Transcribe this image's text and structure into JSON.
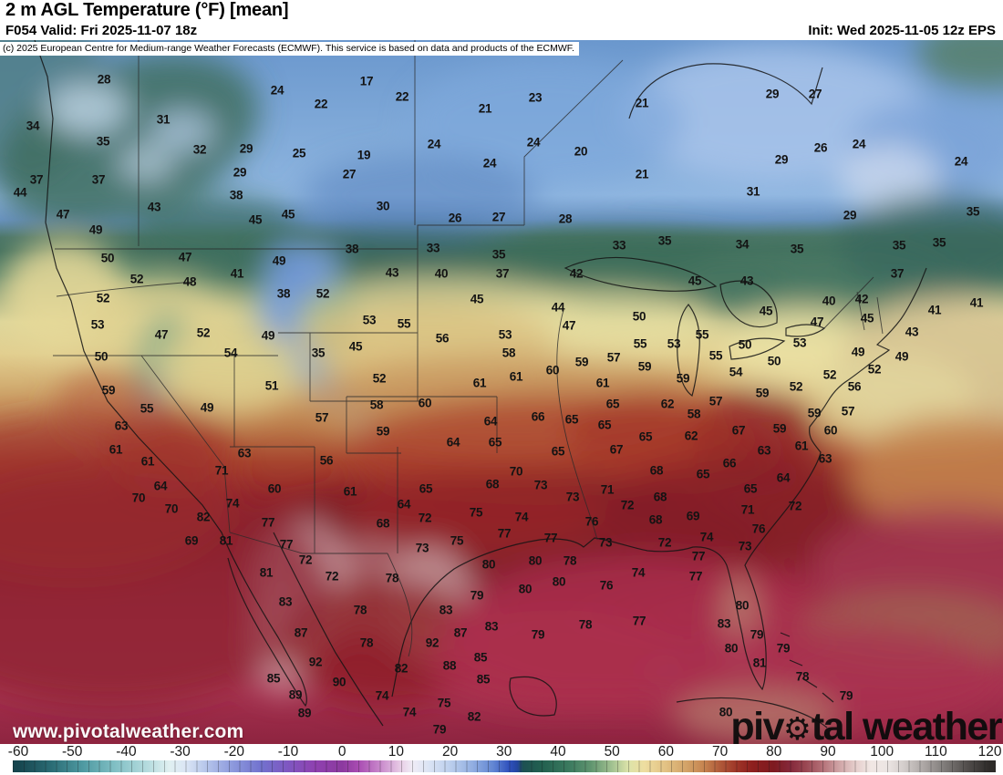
{
  "header": {
    "title": "2 m AGL Temperature (°F) [mean]",
    "forecast_line": "F054 Valid: Fri 2025-11-07 18z",
    "init_line": "Init: Wed 2025-11-05 12z EPS",
    "copyright": "(c) 2025 European Centre for Medium-range Weather Forecasts (ECMWF). This service is based on data and products of the ECMWF."
  },
  "watermarks": {
    "url": "www.pivotalweather.com",
    "logo": {
      "pre": "piv",
      "gear": "⚙",
      "post": "tal weather"
    }
  },
  "colorbar": {
    "unit": "°F",
    "range": [
      -60,
      120
    ],
    "tick_labels": [
      "-60",
      "-50",
      "-40",
      "-30",
      "-20",
      "-10",
      "0",
      "10",
      "20",
      "30",
      "40",
      "50",
      "60",
      "70",
      "80",
      "90",
      "100",
      "110",
      "120"
    ],
    "stops": [
      [
        -60,
        "#16454e"
      ],
      [
        -54,
        "#2a6b74"
      ],
      [
        -48,
        "#4f9aa2"
      ],
      [
        -42,
        "#82c0c5"
      ],
      [
        -36,
        "#b6dcdf"
      ],
      [
        -32,
        "#e0f0f1"
      ],
      [
        -29,
        "#dbe6f5"
      ],
      [
        -25,
        "#b4c4ea"
      ],
      [
        -20,
        "#8b97dc"
      ],
      [
        -15,
        "#7272ce"
      ],
      [
        -10,
        "#7f57c1"
      ],
      [
        -5,
        "#8f41b0"
      ],
      [
        0,
        "#8c3a9f"
      ],
      [
        3,
        "#a94cb2"
      ],
      [
        7,
        "#c887cb"
      ],
      [
        11,
        "#e9cfe7"
      ],
      [
        13,
        "#f0ecf6"
      ],
      [
        16,
        "#dbe4f4"
      ],
      [
        20,
        "#bccfed"
      ],
      [
        24,
        "#94b0e2"
      ],
      [
        28,
        "#6286d3"
      ],
      [
        31,
        "#2f50bd"
      ],
      [
        32.5,
        "#24469f"
      ],
      [
        33.5,
        "#1d5052"
      ],
      [
        37,
        "#22604f"
      ],
      [
        42,
        "#3b7a5f"
      ],
      [
        46,
        "#5f946f"
      ],
      [
        50,
        "#a2c191"
      ],
      [
        53,
        "#dce3a9"
      ],
      [
        56,
        "#eedda0"
      ],
      [
        60,
        "#e2c183"
      ],
      [
        64,
        "#d2a166"
      ],
      [
        67,
        "#c68450"
      ],
      [
        70,
        "#b05a3a"
      ],
      [
        73,
        "#9f3628"
      ],
      [
        76,
        "#8e1f1e"
      ],
      [
        80,
        "#7e1a20"
      ],
      [
        83,
        "#85283a"
      ],
      [
        86,
        "#9a4853"
      ],
      [
        89,
        "#b47077"
      ],
      [
        92,
        "#cfa3a5"
      ],
      [
        95,
        "#e5cdcb"
      ],
      [
        98,
        "#f1e7e4"
      ],
      [
        101,
        "#ece5e3"
      ],
      [
        104,
        "#d4cecc"
      ],
      [
        108,
        "#aaa4a2"
      ],
      [
        112,
        "#7b7775"
      ],
      [
        116,
        "#504c4a"
      ],
      [
        120,
        "#2e2b29"
      ]
    ]
  },
  "map": {
    "temperature_labels": [
      [
        28,
        107,
        80
      ],
      [
        24,
        297,
        92
      ],
      [
        17,
        395,
        82
      ],
      [
        22,
        434,
        99
      ],
      [
        23,
        580,
        100
      ],
      [
        21,
        525,
        112
      ],
      [
        21,
        697,
        106
      ],
      [
        29,
        840,
        96
      ],
      [
        27,
        887,
        96
      ],
      [
        22,
        345,
        107
      ],
      [
        31,
        172,
        124
      ],
      [
        34,
        29,
        131
      ],
      [
        35,
        106,
        148
      ],
      [
        32,
        212,
        157
      ],
      [
        29,
        263,
        156
      ],
      [
        25,
        321,
        161
      ],
      [
        24,
        469,
        151
      ],
      [
        24,
        578,
        149
      ],
      [
        20,
        630,
        159
      ],
      [
        19,
        392,
        163
      ],
      [
        24,
        530,
        172
      ],
      [
        21,
        697,
        184
      ],
      [
        26,
        893,
        155
      ],
      [
        24,
        935,
        151
      ],
      [
        24,
        1047,
        170
      ],
      [
        29,
        850,
        168
      ],
      [
        37,
        33,
        190
      ],
      [
        37,
        101,
        190
      ],
      [
        29,
        256,
        182
      ],
      [
        27,
        376,
        184
      ],
      [
        31,
        819,
        203
      ],
      [
        44,
        15,
        204
      ],
      [
        38,
        252,
        207
      ],
      [
        43,
        162,
        220
      ],
      [
        30,
        413,
        219
      ],
      [
        45,
        309,
        228
      ],
      [
        47,
        62,
        228
      ],
      [
        29,
        925,
        229
      ],
      [
        35,
        1060,
        225
      ],
      [
        45,
        273,
        234
      ],
      [
        26,
        492,
        232
      ],
      [
        27,
        540,
        231
      ],
      [
        28,
        613,
        233
      ],
      [
        49,
        98,
        245
      ],
      [
        33,
        468,
        265
      ],
      [
        35,
        540,
        272
      ],
      [
        33,
        672,
        262
      ],
      [
        35,
        722,
        257
      ],
      [
        34,
        807,
        261
      ],
      [
        35,
        867,
        266
      ],
      [
        35,
        979,
        262
      ],
      [
        35,
        1023,
        259
      ],
      [
        38,
        379,
        266
      ],
      [
        50,
        111,
        276
      ],
      [
        47,
        196,
        275
      ],
      [
        49,
        299,
        279
      ],
      [
        41,
        253,
        293
      ],
      [
        48,
        201,
        302
      ],
      [
        52,
        143,
        299
      ],
      [
        43,
        812,
        301
      ],
      [
        45,
        755,
        301
      ],
      [
        43,
        423,
        292
      ],
      [
        40,
        477,
        293
      ],
      [
        37,
        544,
        293
      ],
      [
        42,
        625,
        293
      ],
      [
        37,
        977,
        293
      ],
      [
        38,
        304,
        315
      ],
      [
        52,
        347,
        315
      ],
      [
        52,
        106,
        320
      ],
      [
        45,
        516,
        321
      ],
      [
        42,
        938,
        321
      ],
      [
        40,
        902,
        323
      ],
      [
        41,
        1064,
        325
      ],
      [
        44,
        605,
        330
      ],
      [
        41,
        1018,
        333
      ],
      [
        45,
        833,
        334
      ],
      [
        53,
        100,
        349
      ],
      [
        53,
        398,
        344
      ],
      [
        55,
        436,
        348
      ],
      [
        47,
        170,
        360
      ],
      [
        52,
        216,
        358
      ],
      [
        49,
        287,
        361
      ],
      [
        53,
        547,
        360
      ],
      [
        47,
        617,
        350
      ],
      [
        50,
        694,
        340
      ],
      [
        56,
        478,
        364
      ],
      [
        45,
        944,
        342
      ],
      [
        47,
        889,
        346
      ],
      [
        43,
        993,
        357
      ],
      [
        55,
        763,
        360
      ],
      [
        53,
        870,
        369
      ],
      [
        55,
        695,
        370
      ],
      [
        53,
        732,
        370
      ],
      [
        50,
        810,
        371
      ],
      [
        50,
        104,
        384
      ],
      [
        54,
        246,
        380
      ],
      [
        35,
        342,
        380
      ],
      [
        45,
        383,
        373
      ],
      [
        58,
        551,
        380
      ],
      [
        57,
        666,
        385
      ],
      [
        55,
        778,
        383
      ],
      [
        49,
        934,
        379
      ],
      [
        49,
        982,
        384
      ],
      [
        50,
        842,
        389
      ],
      [
        59,
        631,
        390
      ],
      [
        59,
        700,
        395
      ],
      [
        52,
        952,
        398
      ],
      [
        60,
        599,
        399
      ],
      [
        54,
        800,
        401
      ],
      [
        52,
        903,
        404
      ],
      [
        61,
        559,
        406
      ],
      [
        52,
        409,
        408
      ],
      [
        59,
        742,
        408
      ],
      [
        61,
        519,
        413
      ],
      [
        61,
        654,
        413
      ],
      [
        51,
        291,
        416
      ],
      [
        52,
        866,
        417
      ],
      [
        56,
        930,
        417
      ],
      [
        59,
        112,
        421
      ],
      [
        59,
        829,
        424
      ],
      [
        60,
        459,
        435
      ],
      [
        58,
        406,
        437
      ],
      [
        65,
        665,
        436
      ],
      [
        62,
        725,
        436
      ],
      [
        55,
        154,
        441
      ],
      [
        49,
        220,
        440
      ],
      [
        57,
        923,
        444
      ],
      [
        59,
        886,
        446
      ],
      [
        58,
        754,
        447
      ],
      [
        66,
        583,
        450
      ],
      [
        57,
        346,
        451
      ],
      [
        65,
        620,
        453
      ],
      [
        64,
        531,
        455
      ],
      [
        65,
        656,
        459
      ],
      [
        63,
        126,
        460
      ],
      [
        59,
        413,
        466
      ],
      [
        67,
        803,
        465
      ],
      [
        60,
        904,
        465
      ],
      [
        59,
        848,
        463
      ],
      [
        65,
        701,
        472
      ],
      [
        62,
        751,
        471
      ],
      [
        64,
        490,
        478
      ],
      [
        65,
        536,
        478
      ],
      [
        61,
        872,
        482
      ],
      [
        67,
        669,
        486
      ],
      [
        61,
        120,
        486
      ],
      [
        63,
        831,
        487
      ],
      [
        65,
        605,
        488
      ],
      [
        63,
        261,
        490
      ],
      [
        57,
        778,
        433
      ],
      [
        63,
        898,
        496
      ],
      [
        61,
        155,
        499
      ],
      [
        56,
        351,
        498
      ],
      [
        66,
        793,
        501
      ],
      [
        68,
        713,
        509
      ],
      [
        70,
        559,
        510
      ],
      [
        71,
        236,
        509
      ],
      [
        65,
        764,
        513
      ],
      [
        64,
        852,
        517
      ],
      [
        68,
        533,
        524
      ],
      [
        73,
        586,
        525
      ],
      [
        64,
        169,
        526
      ],
      [
        65,
        460,
        529
      ],
      [
        60,
        294,
        529
      ],
      [
        65,
        816,
        529
      ],
      [
        71,
        659,
        530
      ],
      [
        61,
        377,
        532
      ],
      [
        73,
        621,
        538
      ],
      [
        68,
        717,
        538
      ],
      [
        70,
        145,
        539
      ],
      [
        74,
        248,
        545
      ],
      [
        64,
        436,
        546
      ],
      [
        72,
        681,
        547
      ],
      [
        72,
        865,
        548
      ],
      [
        70,
        181,
        551
      ],
      [
        71,
        813,
        552
      ],
      [
        75,
        515,
        555
      ],
      [
        82,
        216,
        560
      ],
      [
        74,
        565,
        560
      ],
      [
        69,
        753,
        559
      ],
      [
        72,
        459,
        561
      ],
      [
        68,
        712,
        563
      ],
      [
        76,
        642,
        565
      ],
      [
        77,
        287,
        566
      ],
      [
        68,
        413,
        567
      ],
      [
        77,
        546,
        578
      ],
      [
        73,
        810,
        592
      ],
      [
        74,
        768,
        582
      ],
      [
        77,
        597,
        583
      ],
      [
        69,
        203,
        586
      ],
      [
        81,
        241,
        586
      ],
      [
        75,
        494,
        586
      ],
      [
        77,
        307,
        590
      ],
      [
        73,
        456,
        594
      ],
      [
        76,
        825,
        573
      ],
      [
        73,
        657,
        588
      ],
      [
        72,
        722,
        588
      ],
      [
        77,
        759,
        603
      ],
      [
        80,
        580,
        608
      ],
      [
        78,
        618,
        608
      ],
      [
        72,
        328,
        607
      ],
      [
        80,
        529,
        612
      ],
      [
        74,
        693,
        621
      ],
      [
        81,
        285,
        621
      ],
      [
        72,
        357,
        625
      ],
      [
        77,
        756,
        625
      ],
      [
        78,
        423,
        627
      ],
      [
        80,
        606,
        631
      ],
      [
        76,
        658,
        635
      ],
      [
        80,
        569,
        639
      ],
      [
        79,
        516,
        646
      ],
      [
        83,
        306,
        653
      ],
      [
        80,
        807,
        657
      ],
      [
        78,
        388,
        662
      ],
      [
        83,
        482,
        662
      ],
      [
        77,
        694,
        674
      ],
      [
        78,
        635,
        678
      ],
      [
        83,
        787,
        677
      ],
      [
        83,
        532,
        680
      ],
      [
        87,
        323,
        687
      ],
      [
        87,
        498,
        687
      ],
      [
        79,
        583,
        689
      ],
      [
        79,
        823,
        689
      ],
      [
        92,
        467,
        698
      ],
      [
        78,
        395,
        698
      ],
      [
        80,
        795,
        704
      ],
      [
        79,
        852,
        704
      ],
      [
        85,
        520,
        714
      ],
      [
        92,
        339,
        719
      ],
      [
        81,
        826,
        720
      ],
      [
        88,
        486,
        723
      ],
      [
        82,
        433,
        726
      ],
      [
        85,
        293,
        737
      ],
      [
        78,
        873,
        735
      ],
      [
        90,
        365,
        741
      ],
      [
        85,
        523,
        738
      ],
      [
        89,
        317,
        755
      ],
      [
        74,
        412,
        756
      ],
      [
        79,
        921,
        756
      ],
      [
        75,
        480,
        764
      ],
      [
        89,
        327,
        775
      ],
      [
        74,
        442,
        774
      ],
      [
        80,
        789,
        774
      ],
      [
        82,
        513,
        779
      ],
      [
        79,
        475,
        793
      ]
    ]
  }
}
